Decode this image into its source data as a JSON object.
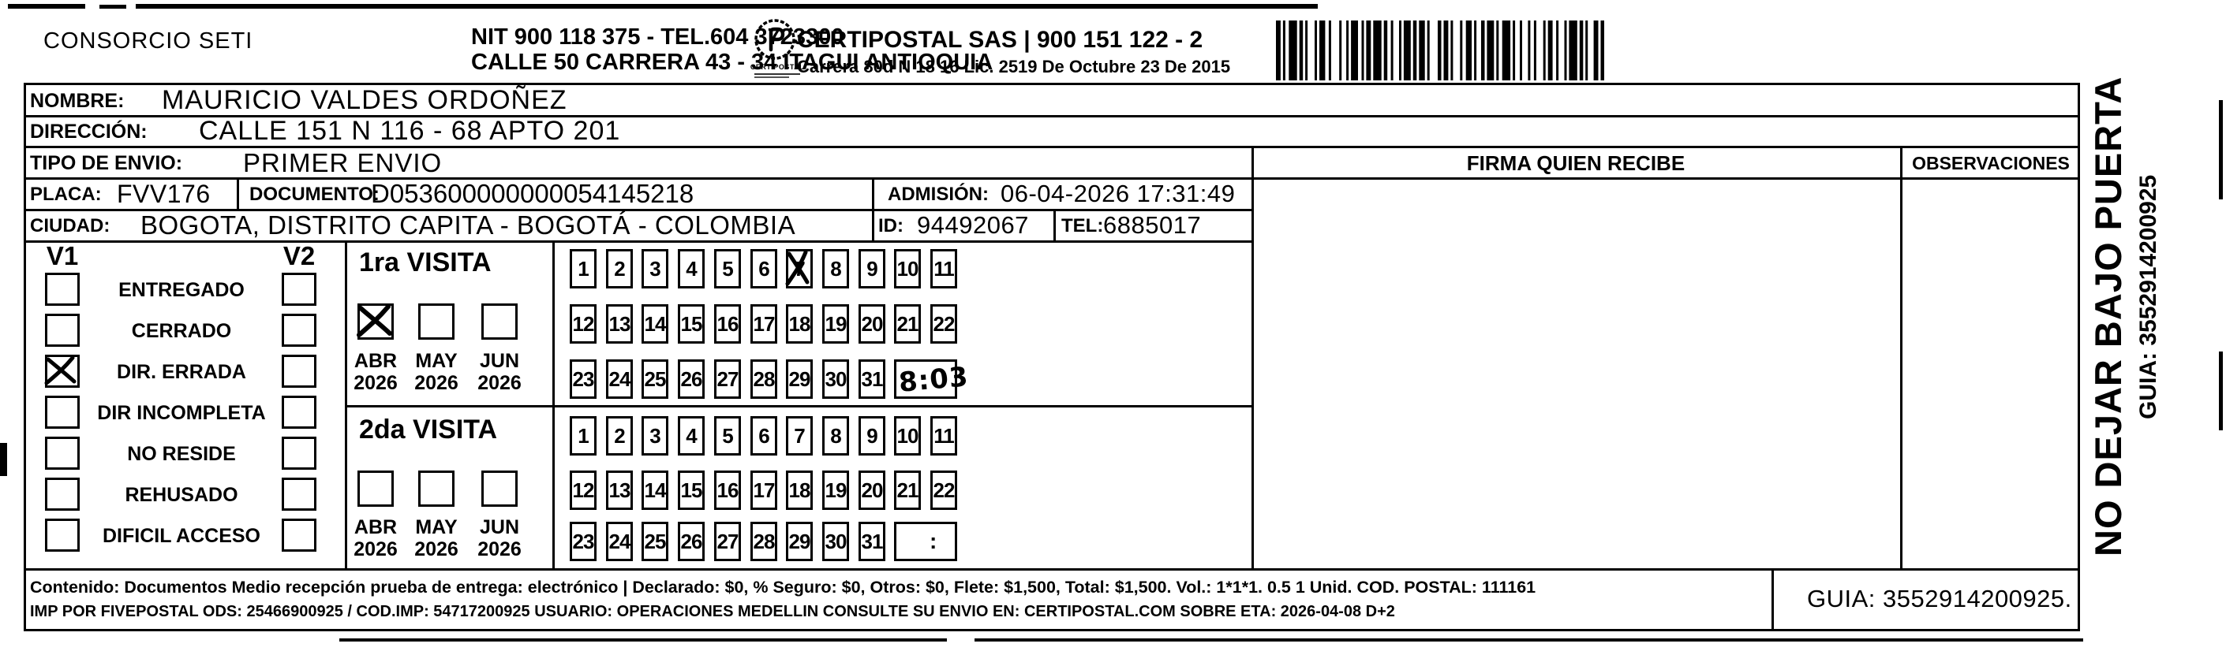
{
  "header": {
    "consorcio": "CONSORCIO SETI",
    "nit_line": "NIT 900 118 375 - TEL.604 3723300",
    "address_line": "CALLE 50 CARRERA 43 - 34 ITAGUI ANTIOQUIA",
    "logo_text": "CERTIPOSTAL",
    "certipostal_line": "CERTIPOSTAL SAS | 900 151 122 - 2",
    "license_line": "Carrera 80d N 18 16  Lic. 2519 De Octubre 23 De 2015"
  },
  "shipment": {
    "nombre_label": "NOMBRE:",
    "nombre": "MAURICIO VALDES ORDOÑEZ",
    "direccion_label": "DIRECCIÓN:",
    "direccion": "CALLE 151 N 116 - 68 APTO 201",
    "tipo_envio_label": "TIPO DE ENVIO:",
    "tipo_envio": "PRIMER ENVIO",
    "placa_label": "PLACA:",
    "placa": "FVV176",
    "documento_label": "DOCUMENTO:",
    "documento": "D053600000000054145218",
    "admision_label": "ADMISIÓN:",
    "admision": "06-04-2026 17:31:49",
    "ciudad_label": "CIUDAD:",
    "ciudad": "BOGOTA, DISTRITO CAPITA - BOGOTÁ - COLOMBIA",
    "id_label": "ID:",
    "id_value": "94492067",
    "tel_label": "TEL:",
    "tel_value": "6885017"
  },
  "columns": {
    "firma": "FIRMA QUIEN RECIBE",
    "observaciones": "OBSERVACIONES"
  },
  "status": {
    "v1_label": "V1",
    "v2_label": "V2",
    "options": [
      {
        "label": "ENTREGADO",
        "v1": false,
        "v2": false
      },
      {
        "label": "CERRADO",
        "v1": false,
        "v2": false
      },
      {
        "label": "DIR. ERRADA",
        "v1": true,
        "v2": false
      },
      {
        "label": "DIR INCOMPLETA",
        "v1": false,
        "v2": false
      },
      {
        "label": "NO RESIDE",
        "v1": false,
        "v2": false
      },
      {
        "label": "REHUSADO",
        "v1": false,
        "v2": false
      },
      {
        "label": "DIFICIL ACCESO",
        "v1": false,
        "v2": false
      }
    ]
  },
  "visits": [
    {
      "title": "1ra VISITA",
      "months": [
        {
          "month": "ABR",
          "year": "2026",
          "checked": true
        },
        {
          "month": "MAY",
          "year": "2026",
          "checked": false
        },
        {
          "month": "JUN",
          "year": "2026",
          "checked": false
        }
      ],
      "marked_day": "7",
      "time": "8:03"
    },
    {
      "title": "2da VISITA",
      "months": [
        {
          "month": "ABR",
          "year": "2026",
          "checked": false
        },
        {
          "month": "MAY",
          "year": "2026",
          "checked": false
        },
        {
          "month": "JUN",
          "year": "2026",
          "checked": false
        }
      ],
      "marked_day": "",
      "time": ""
    }
  ],
  "grid": {
    "days": [
      "1",
      "2",
      "3",
      "4",
      "5",
      "6",
      "7",
      "8",
      "9",
      "10",
      "11",
      "12",
      "13",
      "14",
      "15",
      "16",
      "17",
      "18",
      "19",
      "20",
      "21",
      "22",
      "23",
      "24",
      "25",
      "26",
      "27",
      "28",
      "29",
      "30",
      "31"
    ],
    "colon": ":"
  },
  "side_note": {
    "warning": "NO DEJAR BAJO PUERTA",
    "guia": "GUIA: 3552914200925"
  },
  "footer": {
    "line1": "Contenido: Documentos Medio recepción prueba de entrega: electrónico | Declarado: $0, % Seguro: $0, Otros: $0, Flete: $1,500, Total: $1,500. Vol.: 1*1*1. 0.5  1 Unid. COD. POSTAL: 111161",
    "line2": "IMP POR FIVEPOSTAL ODS: 25466900925 / COD.IMP: 54717200925 USUARIO: OPERACIONES MEDELLIN CONSULTE SU ENVIO EN: CERTIPOSTAL.COM SOBRE ETA: 2026-04-08 D+2",
    "guia_box": "GUIA: 3552914200925."
  }
}
